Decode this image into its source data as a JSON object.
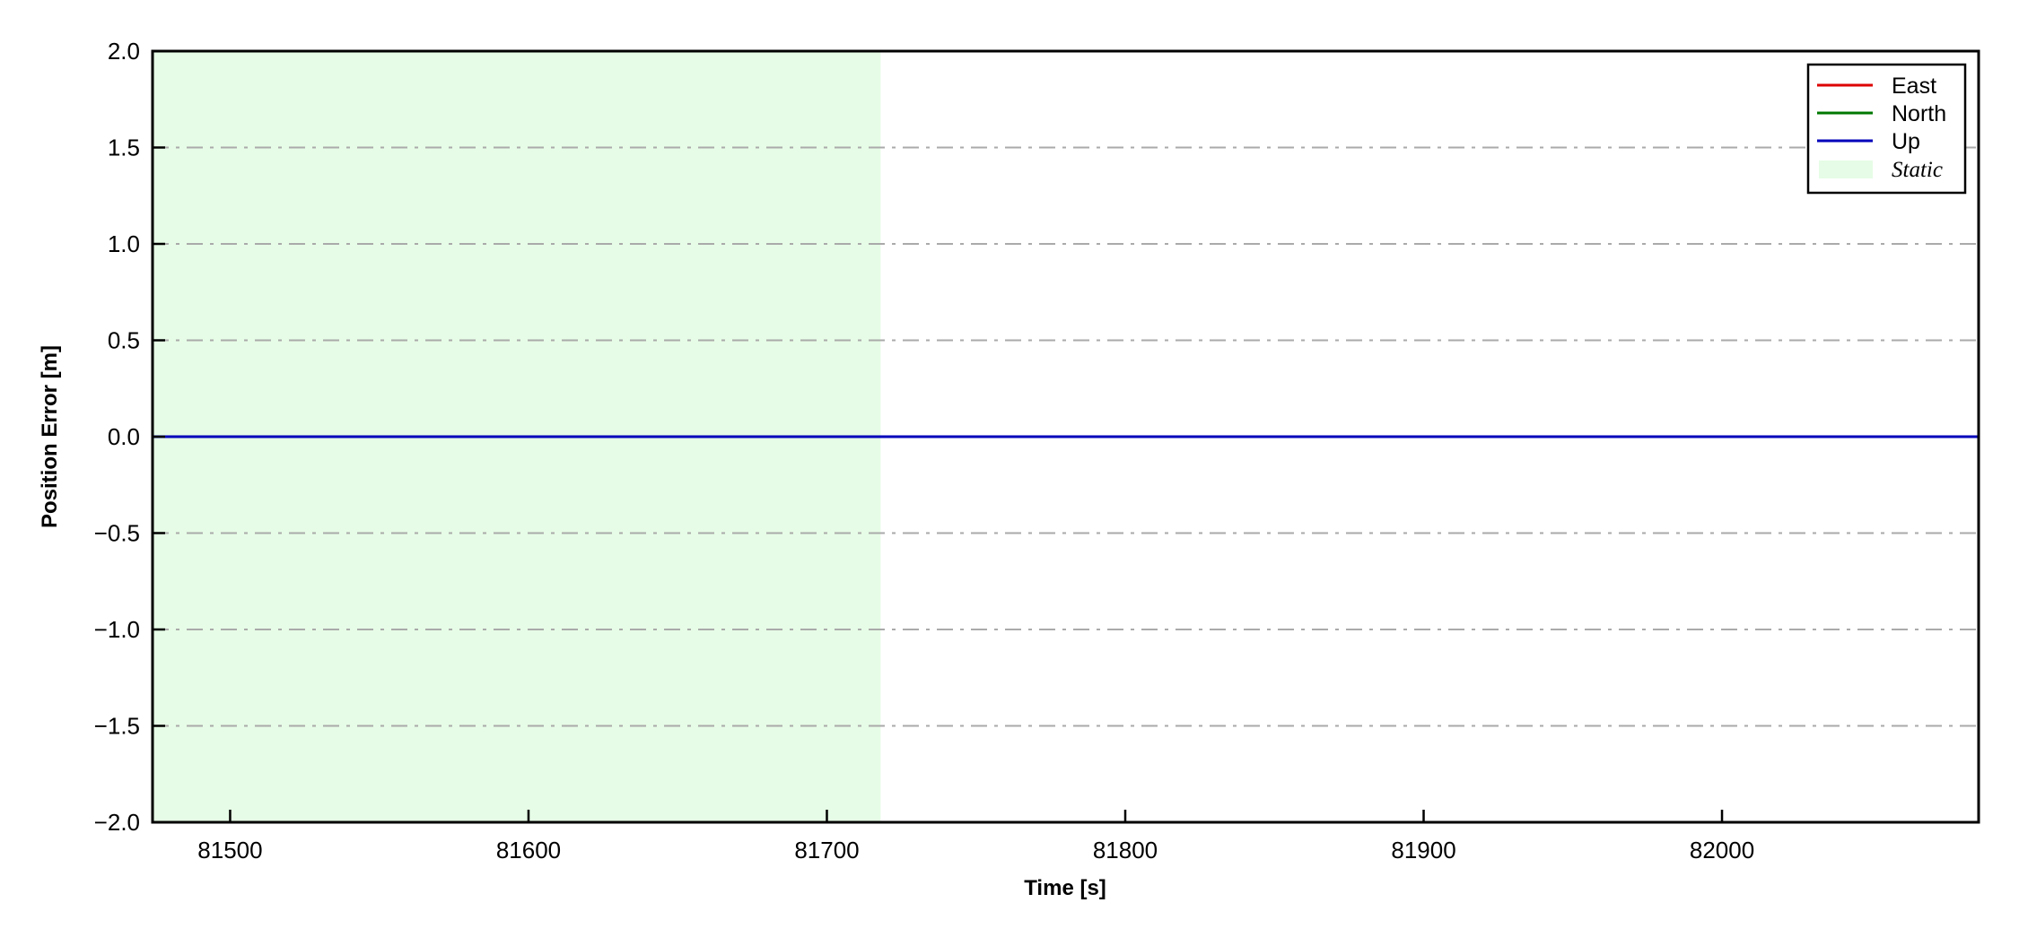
{
  "chart_data": {
    "type": "line",
    "title": "",
    "xlabel": "Time [s]",
    "ylabel": "Position Error [m]",
    "xlim": [
      81474,
      82086
    ],
    "ylim": [
      -2.0,
      2.0
    ],
    "xticks": [
      81500,
      81600,
      81700,
      81800,
      81900,
      82000
    ],
    "xtick_labels": [
      "81500",
      "81600",
      "81700",
      "81800",
      "81900",
      "82000"
    ],
    "yticks": [
      -2.0,
      -1.5,
      -1.0,
      -0.5,
      0.0,
      0.5,
      1.0,
      1.5,
      2.0
    ],
    "ytick_labels": [
      "−2.0",
      "−1.5",
      "−1.0",
      "−0.5",
      "0.0",
      "0.5",
      "1.0",
      "1.5",
      "2.0"
    ],
    "grid": {
      "axis": "y",
      "style": "dash-dot",
      "color": "#aaaaaa"
    },
    "legend": {
      "placement": "top-right"
    },
    "series": [
      {
        "name": "East",
        "color": "#dd0000",
        "x": [
          81474,
          82086
        ],
        "y": [
          0,
          0
        ]
      },
      {
        "name": "North",
        "color": "#007700",
        "x": [
          81474,
          82086
        ],
        "y": [
          0,
          0
        ]
      },
      {
        "name": "Up",
        "color": "#0000bb",
        "x": [
          81474,
          82086
        ],
        "y": [
          0,
          0
        ]
      }
    ],
    "shaded_regions": [
      {
        "name": "Static",
        "x_start": 81474,
        "x_end": 81718,
        "color": "#e6fce6"
      }
    ]
  }
}
